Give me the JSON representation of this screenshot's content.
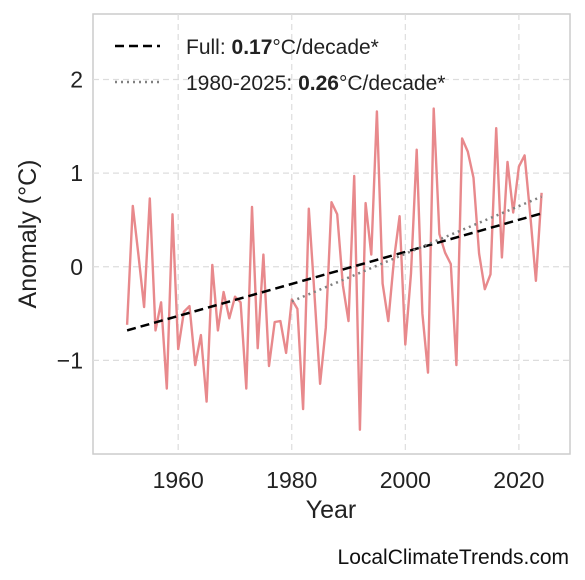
{
  "chart_data": {
    "type": "line",
    "xlabel": "Year",
    "ylabel": "Anomaly (°C)",
    "xlim": [
      1945,
      2029
    ],
    "ylim": [
      -2.0,
      2.7
    ],
    "x_ticks": [
      "1960",
      "1980",
      "2000",
      "2020"
    ],
    "y_ticks": [
      "2",
      "1",
      "0",
      "−1"
    ],
    "grid": true,
    "legend_position": "top-left",
    "series": [
      {
        "name": "",
        "color": "#e8898c",
        "style": "solid",
        "x": [
          1951,
          1952,
          1953,
          1954,
          1955,
          1956,
          1957,
          1958,
          1959,
          1960,
          1961,
          1962,
          1963,
          1964,
          1965,
          1966,
          1967,
          1968,
          1969,
          1970,
          1971,
          1972,
          1973,
          1974,
          1975,
          1976,
          1977,
          1978,
          1979,
          1980,
          1981,
          1982,
          1983,
          1984,
          1985,
          1986,
          1987,
          1988,
          1989,
          1990,
          1991,
          1992,
          1993,
          1994,
          1995,
          1996,
          1997,
          1998,
          1999,
          2000,
          2001,
          2002,
          2003,
          2004,
          2005,
          2006,
          2007,
          2008,
          2009,
          2010,
          2011,
          2012,
          2013,
          2014,
          2015,
          2016,
          2017,
          2018,
          2019,
          2020,
          2021,
          2022,
          2023,
          2024
        ],
        "values": [
          -0.62,
          0.65,
          0.13,
          -0.43,
          0.73,
          -0.68,
          -0.38,
          -1.3,
          0.56,
          -0.88,
          -0.48,
          -0.42,
          -1.05,
          -0.73,
          -1.44,
          0.02,
          -0.68,
          -0.27,
          -0.55,
          -0.32,
          -0.38,
          -1.3,
          0.64,
          -0.87,
          0.13,
          -1.06,
          -0.59,
          -0.58,
          -0.92,
          -0.35,
          -0.45,
          -1.52,
          0.62,
          -0.3,
          -1.25,
          -0.65,
          0.69,
          0.56,
          -0.2,
          -0.58,
          0.97,
          -1.74,
          0.68,
          0.13,
          1.66,
          -0.18,
          -0.58,
          0.08,
          0.54,
          -0.83,
          -0.07,
          1.25,
          -0.5,
          -1.13,
          1.69,
          0.35,
          0.15,
          0.03,
          -1.05,
          1.37,
          1.23,
          0.95,
          0.14,
          -0.24,
          -0.08,
          1.48,
          0.1,
          1.12,
          0.58,
          1.07,
          1.19,
          0.55,
          -0.15,
          0.79
        ]
      },
      {
        "name": "Full: 0.17°C/decade*",
        "color": "#000000",
        "style": "dashed",
        "x": [
          1951,
          2024
        ],
        "values": [
          -0.68,
          0.57
        ]
      },
      {
        "name": "1980-2025: 0.26°C/decade*",
        "color": "#808080",
        "style": "dotted",
        "x": [
          1980,
          2024
        ],
        "values": [
          -0.37,
          0.75
        ]
      }
    ]
  },
  "legend": {
    "full_prefix": "Full: ",
    "full_value": "0.17",
    "full_suffix": "°C/decade*",
    "recent_prefix": "1980-2025: ",
    "recent_value": "0.26",
    "recent_suffix": "°C/decade*"
  },
  "watermark": "LocalClimateTrends.com",
  "colors": {
    "data_line": "#e8898c",
    "trend_full": "#000000",
    "trend_recent": "#808080",
    "grid": "#dddddd",
    "frame": "#cccccc"
  }
}
